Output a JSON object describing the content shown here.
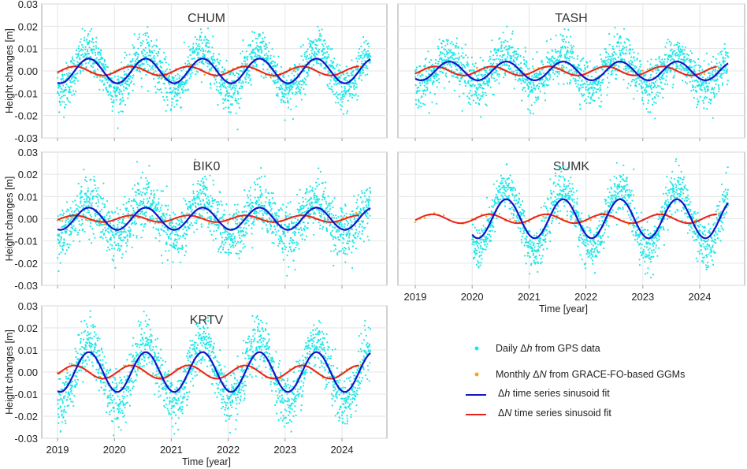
{
  "chart_data": {
    "type": "scatter",
    "ylabel": "Height changes [m]",
    "xlabel": "Time [year]",
    "ylim": [
      -0.03,
      0.03
    ],
    "yticks": [
      "0.03",
      "0.02",
      "0.01",
      "0.00",
      "-0.01",
      "-0.02",
      "-0.03"
    ],
    "ytick_values": [
      0.03,
      0.02,
      0.01,
      0.0,
      -0.01,
      -0.02,
      -0.03
    ],
    "xticks": [
      "2019",
      "2020",
      "2021",
      "2022",
      "2023",
      "2024"
    ],
    "xtick_values": [
      2019,
      2020,
      2021,
      2022,
      2023,
      2024
    ],
    "grid": true,
    "colors": {
      "gps": "#1ee6e6",
      "grace": "#f5a623",
      "fit_h": "#1414c8",
      "fit_n": "#e8231e"
    },
    "legend": {
      "placement": "bottom-right",
      "entries": [
        {
          "pre": "Daily Δ",
          "ital": "h",
          "post": " from GPS data",
          "kind": "dot",
          "color": "#1ee6e6"
        },
        {
          "pre": "Monthly Δ",
          "ital": "N",
          "post": " from GRACE-FO-based GGMs",
          "kind": "dot",
          "color": "#f5a623"
        },
        {
          "pre": "Δ",
          "ital": "h",
          "post": " time series sinusoid fit",
          "kind": "line",
          "color": "#1414c8"
        },
        {
          "pre": "Δ",
          "ital": "N",
          "post": " time series sinusoid fit",
          "kind": "line",
          "color": "#e8231e"
        }
      ]
    },
    "panels": [
      {
        "station": "CHUM",
        "gps_start": 2019.0,
        "gps_end": 2024.5,
        "fit_h": {
          "amplitude": 0.0055,
          "peak_year": 2019.55
        },
        "fit_n": {
          "amplitude": 0.002,
          "peak_year": 2019.3
        },
        "gps_noise_std": 0.005
      },
      {
        "station": "TASH",
        "gps_start": 2019.0,
        "gps_end": 2024.5,
        "fit_h": {
          "amplitude": 0.0042,
          "peak_year": 2019.6
        },
        "fit_n": {
          "amplitude": 0.002,
          "peak_year": 2019.35
        },
        "gps_noise_std": 0.005
      },
      {
        "station": "BIK0",
        "gps_start": 2019.0,
        "gps_end": 2024.5,
        "fit_h": {
          "amplitude": 0.005,
          "peak_year": 2019.55
        },
        "fit_n": {
          "amplitude": 0.0015,
          "peak_year": 2019.3
        },
        "gps_noise_std": 0.006
      },
      {
        "station": "SUMK",
        "gps_start": 2020.0,
        "gps_end": 2024.5,
        "fit_h": {
          "amplitude": 0.0088,
          "peak_year": 2020.6
        },
        "fit_n": {
          "amplitude": 0.002,
          "peak_year": 2019.3
        },
        "gps_noise_std": 0.005
      },
      {
        "station": "KRTV",
        "gps_start": 2019.0,
        "gps_end": 2024.5,
        "fit_h": {
          "amplitude": 0.009,
          "peak_year": 2019.55
        },
        "fit_n": {
          "amplitude": 0.003,
          "peak_year": 2019.3
        },
        "gps_noise_std": 0.006
      }
    ]
  }
}
